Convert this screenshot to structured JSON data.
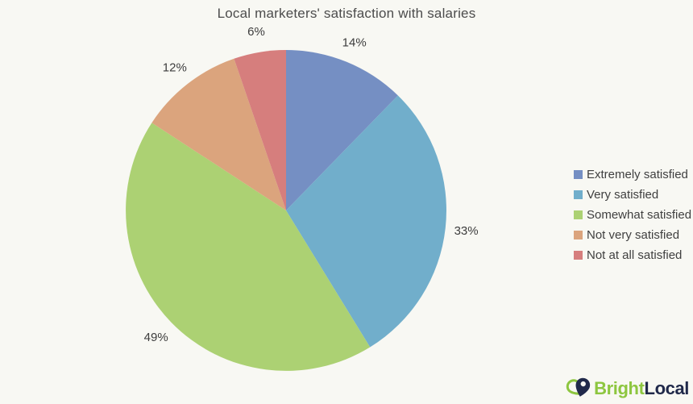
{
  "page": {
    "background": "#f8f8f3"
  },
  "chart_data": {
    "type": "pie",
    "title": "Local marketers' satisfaction with salaries",
    "categories": [
      "Extremely satisfied",
      "Very satisfied",
      "Somewhat satisfied",
      "Not very satisfied",
      "Not at all satisfied"
    ],
    "values": [
      14,
      33,
      49,
      12,
      6
    ],
    "labels": [
      "14%",
      "33%",
      "49%",
      "12%",
      "6%"
    ],
    "colors": [
      "#758fc3",
      "#71aecb",
      "#acd173",
      "#dba47d",
      "#d67e7d"
    ],
    "start_angle_deg": 0,
    "direction": "clockwise",
    "legend_position": "right",
    "label_color": "#3d3d3d",
    "title_color": "#4c4c4c"
  },
  "logo": {
    "brand_green": "Bright",
    "brand_navy": "Local",
    "green_color": "#8dc63f",
    "navy_color": "#20294a"
  }
}
